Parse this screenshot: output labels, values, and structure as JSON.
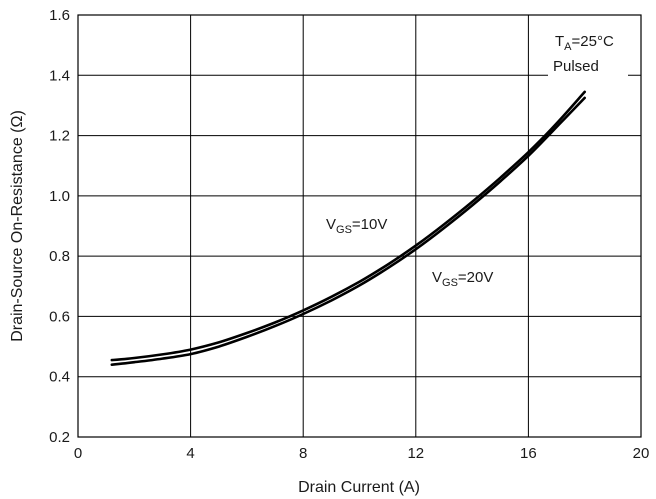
{
  "chart_data": {
    "type": "line",
    "xlabel": "Drain Current (A)",
    "ylabel": "Drain-Source On-Resistance (Ω)",
    "xlim": [
      0,
      20
    ],
    "ylim": [
      0.2,
      1.6
    ],
    "x_ticks": [
      "0",
      "4",
      "8",
      "12",
      "16",
      "20"
    ],
    "y_ticks": [
      "0.2",
      "0.4",
      "0.6",
      "0.8",
      "1.0",
      "1.2",
      "1.4",
      "1.6"
    ],
    "grid": true,
    "series": [
      {
        "x": [
          1.2,
          2,
          3,
          4,
          5,
          6,
          7,
          8,
          9,
          10,
          11,
          12,
          13,
          14,
          15,
          16,
          17,
          18
        ],
        "values": [
          0.455,
          0.462,
          0.474,
          0.49,
          0.514,
          0.545,
          0.58,
          0.62,
          0.665,
          0.715,
          0.772,
          0.835,
          0.905,
          0.98,
          1.06,
          1.145,
          1.24,
          1.345
        ],
        "color": "#000000"
      },
      {
        "x": [
          1.2,
          2,
          3,
          4,
          5,
          6,
          7,
          8,
          9,
          10,
          11,
          12,
          13,
          14,
          15,
          16,
          17,
          18
        ],
        "values": [
          0.44,
          0.448,
          0.46,
          0.475,
          0.5,
          0.532,
          0.568,
          0.608,
          0.653,
          0.703,
          0.76,
          0.823,
          0.893,
          0.968,
          1.048,
          1.133,
          1.228,
          1.325
        ],
        "color": "#000000"
      }
    ],
    "annotations": {
      "condition_temp_main": "T",
      "condition_temp_sub": "A",
      "condition_temp_rest": "=25°C",
      "condition_mode": "Pulsed",
      "vgs10_main": "V",
      "vgs10_sub": "GS",
      "vgs10_rest": "=10V",
      "vgs20_main": "V",
      "vgs20_sub": "GS",
      "vgs20_rest": "=20V"
    }
  }
}
